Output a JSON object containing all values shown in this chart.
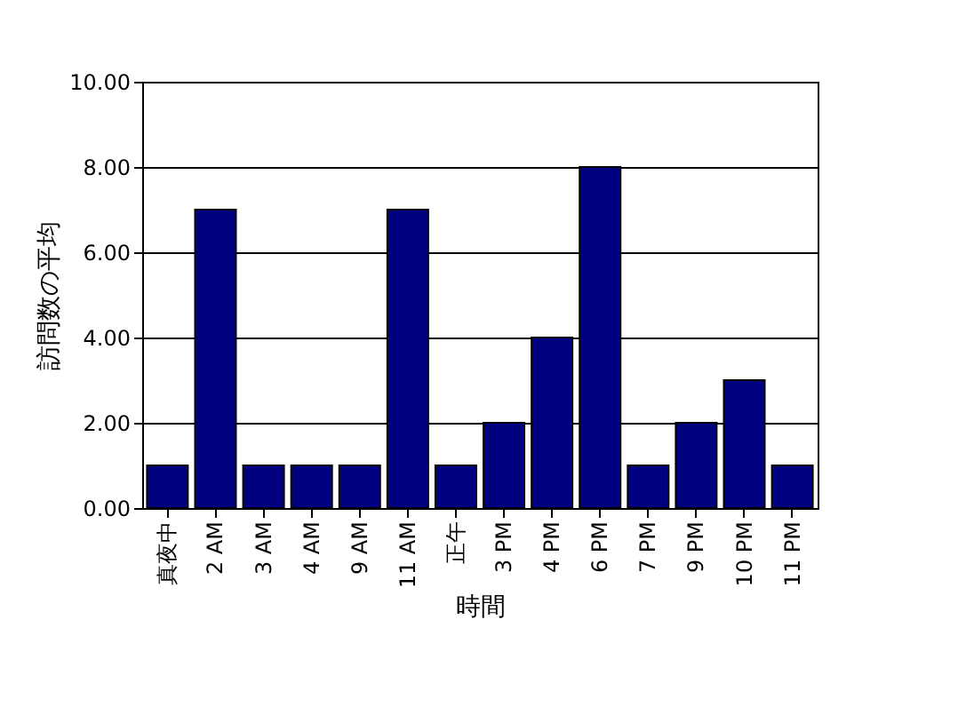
{
  "chart_data": {
    "type": "bar",
    "xlabel": "時間",
    "ylabel": "訪問数の平均",
    "categories": [
      "真夜中",
      "2 AM",
      "3 AM",
      "4 AM",
      "9 AM",
      "11 AM",
      "正午",
      "3 PM",
      "4 PM",
      "6 PM",
      "7 PM",
      "9 PM",
      "10 PM",
      "11 PM"
    ],
    "values": [
      1,
      7,
      1,
      1,
      1,
      7,
      1,
      2,
      4,
      8,
      1,
      2,
      3,
      1
    ],
    "color": "#000080",
    "ylim": [
      0,
      10
    ],
    "yticks": [
      {
        "value": 0,
        "label": "0.00"
      },
      {
        "value": 2,
        "label": "2.00"
      },
      {
        "value": 4,
        "label": "4.00"
      },
      {
        "value": 6,
        "label": "6.00"
      },
      {
        "value": 8,
        "label": "8.00"
      },
      {
        "value": 10,
        "label": "10.00"
      }
    ],
    "grid": "y"
  }
}
